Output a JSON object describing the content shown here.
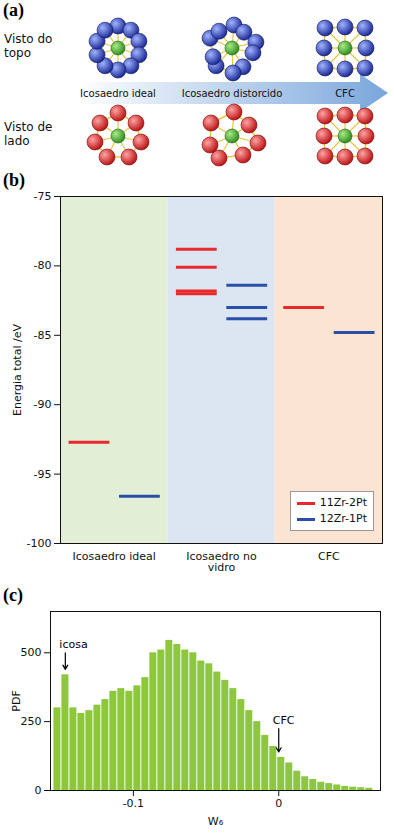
{
  "chart_data": [
    {
      "type": "diagram",
      "panel": "(a)",
      "row_labels": [
        "Visto do topo",
        "Visto de lado"
      ],
      "stage_labels": [
        "Icosaedro ideal",
        "Icosaedro distorcido",
        "CFC"
      ]
    },
    {
      "type": "levels",
      "panel": "(b)",
      "categories": [
        "Icosaedro ideal",
        "Icosaedro no vidro",
        "CFC"
      ],
      "series": [
        {
          "name": "11Zr-2Pt",
          "color": "#e8282b",
          "values": [
            [
              -92.7
            ],
            [
              -78.8,
              -80.1,
              -81.8,
              -82.0
            ],
            [
              -83.0
            ]
          ]
        },
        {
          "name": "12Zr-1Pt",
          "color": "#2a4fa8",
          "values": [
            [
              -96.6
            ],
            [
              -81.4,
              -83.0,
              -83.8
            ],
            [
              -84.8
            ]
          ]
        }
      ],
      "y_label": "Energia total /eV",
      "ylim": [
        -100,
        -75
      ],
      "yticks": [
        -100,
        -95,
        -90,
        -85,
        -80,
        -75
      ],
      "legend": "bottom-right"
    },
    {
      "type": "histogram",
      "panel": "(c)",
      "bins": [
        -0.155,
        -0.1495,
        -0.144,
        -0.1385,
        -0.133,
        -0.1275,
        -0.122,
        -0.1165,
        -0.111,
        -0.1055,
        -0.1,
        -0.0945,
        -0.089,
        -0.0835,
        -0.078,
        -0.0725,
        -0.067,
        -0.0615,
        -0.056,
        -0.0505,
        -0.045,
        -0.0395,
        -0.034,
        -0.0285,
        -0.023,
        -0.0175,
        -0.012,
        -0.0065,
        -0.001,
        0.0045,
        0.01,
        0.0155,
        0.021,
        0.0265,
        0.032,
        0.0375,
        0.043,
        0.0485,
        0.054,
        0.0595,
        0.065
      ],
      "values": [
        300,
        420,
        300,
        280,
        290,
        310,
        330,
        360,
        370,
        360,
        380,
        410,
        500,
        510,
        545,
        530,
        510,
        500,
        470,
        460,
        430,
        400,
        370,
        330,
        290,
        250,
        200,
        160,
        120,
        100,
        70,
        50,
        40,
        30,
        25,
        20,
        15,
        12,
        10,
        8
      ],
      "color": "#8dc63f",
      "x_label": "W₆",
      "y_label": "PDF",
      "xlim": [
        -0.157,
        0.07
      ],
      "xticks": [
        -0.1,
        0
      ],
      "ylim": [
        0,
        650
      ],
      "yticks": [
        0,
        250,
        500
      ],
      "annotations": [
        {
          "text": "icosa",
          "x": -0.1468,
          "y": 530,
          "arrow_from": 500,
          "arrow_to": 440
        },
        {
          "text": "CFC",
          "x": 0,
          "y": 255,
          "arrow_from": 225,
          "arrow_to": 140
        }
      ]
    }
  ]
}
